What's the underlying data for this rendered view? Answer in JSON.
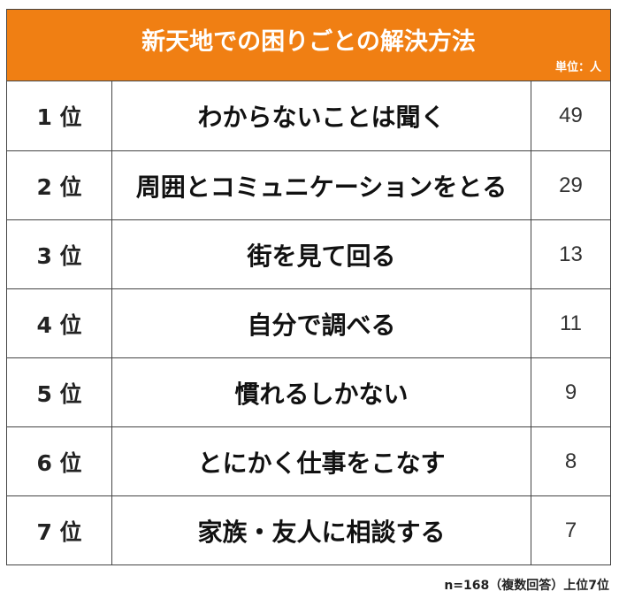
{
  "title": "新天地での困りごとの解決方法",
  "unit": "単位：人",
  "note": "n=168（複数回答）上位7位",
  "colors": {
    "header": "#f07f13",
    "border": "#444444"
  },
  "chart_data": {
    "type": "table",
    "title": "新天地での困りごとの解決方法",
    "unit": "単位：人",
    "rows": [
      {
        "rank": "1 位",
        "label": "わからないことは聞く",
        "value": 49
      },
      {
        "rank": "2 位",
        "label": "周囲とコミュニケーションをとる",
        "value": 29
      },
      {
        "rank": "3 位",
        "label": "街を見て回る",
        "value": 13
      },
      {
        "rank": "4 位",
        "label": "自分で調べる",
        "value": 11
      },
      {
        "rank": "5 位",
        "label": "慣れるしかない",
        "value": 9
      },
      {
        "rank": "6 位",
        "label": "とにかく仕事をこなす",
        "value": 8
      },
      {
        "rank": "7 位",
        "label": "家族・友人に相談する",
        "value": 7
      }
    ],
    "note": "n=168（複数回答）上位7位"
  }
}
